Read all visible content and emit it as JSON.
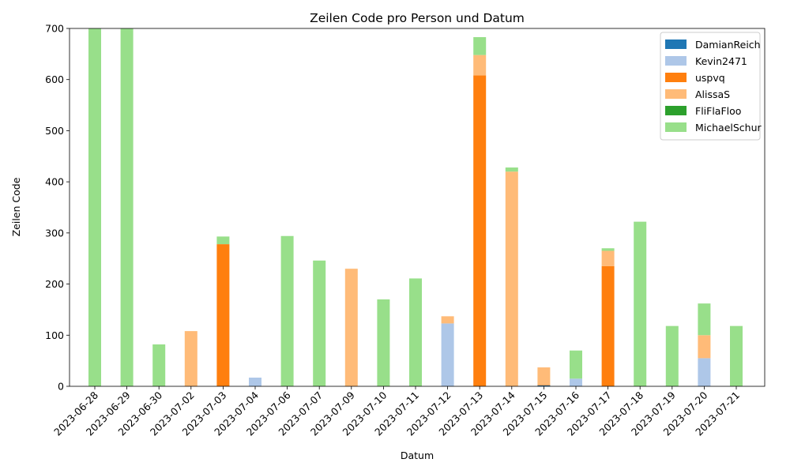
{
  "chart_data": {
    "type": "bar",
    "stacked": true,
    "title": "Zeilen Code pro Person und Datum",
    "xlabel": "Datum",
    "ylabel": "Zeilen Code",
    "ylim": [
      0,
      700
    ],
    "yticks": [
      0,
      100,
      200,
      300,
      400,
      500,
      600,
      700
    ],
    "legend_position": "top-right",
    "grid": false,
    "categories": [
      "2023-06-28",
      "2023-06-29",
      "2023-06-30",
      "2023-07-02",
      "2023-07-03",
      "2023-07-04",
      "2023-07-06",
      "2023-07-07",
      "2023-07-09",
      "2023-07-10",
      "2023-07-11",
      "2023-07-12",
      "2023-07-13",
      "2023-07-14",
      "2023-07-15",
      "2023-07-16",
      "2023-07-17",
      "2023-07-18",
      "2023-07-19",
      "2023-07-20",
      "2023-07-21"
    ],
    "series": [
      {
        "name": "DamianReich",
        "color": "#1f77b4",
        "values": [
          0,
          0,
          0,
          0,
          0,
          0,
          0,
          0,
          0,
          0,
          0,
          0,
          0,
          0,
          2,
          0,
          0,
          0,
          0,
          0,
          0
        ]
      },
      {
        "name": "Kevin2471",
        "color": "#aec7e8",
        "values": [
          0,
          0,
          0,
          0,
          0,
          17,
          0,
          0,
          0,
          0,
          0,
          123,
          0,
          0,
          0,
          15,
          0,
          0,
          0,
          55,
          0
        ]
      },
      {
        "name": "uspvq",
        "color": "#ff7f0e",
        "values": [
          0,
          0,
          0,
          0,
          278,
          0,
          0,
          0,
          0,
          0,
          0,
          0,
          608,
          0,
          1,
          0,
          235,
          0,
          0,
          0,
          0
        ]
      },
      {
        "name": "AlissaS",
        "color": "#ffbb78",
        "values": [
          0,
          0,
          0,
          108,
          0,
          0,
          0,
          0,
          230,
          0,
          0,
          14,
          40,
          420,
          34,
          0,
          30,
          0,
          0,
          45,
          0
        ]
      },
      {
        "name": "FliFlaFloo",
        "color": "#2ca02c",
        "values": [
          0,
          0,
          0,
          0,
          0,
          0,
          0,
          0,
          0,
          0,
          0,
          0,
          0,
          0,
          0,
          0,
          0,
          0,
          0,
          0,
          0
        ]
      },
      {
        "name": "MichaelSchur",
        "color": "#98df8a",
        "values": [
          700,
          700,
          82,
          0,
          15,
          0,
          294,
          246,
          0,
          170,
          211,
          0,
          35,
          8,
          0,
          55,
          5,
          322,
          118,
          62,
          118
        ]
      }
    ]
  }
}
